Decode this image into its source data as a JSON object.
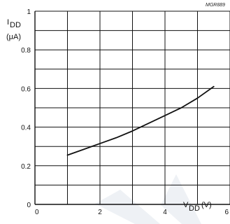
{
  "chart_data": {
    "type": "line",
    "figure_code": "MGR889",
    "xlim": [
      0,
      6
    ],
    "ylim": [
      0,
      1
    ],
    "x_tick_labels": [
      "0",
      "2",
      "4",
      "6"
    ],
    "y_tick_labels": [
      "0",
      "0.2",
      "0.4",
      "0.6",
      "0.8",
      "1"
    ],
    "y_label": {
      "main": "I",
      "sub": "DD",
      "unit": "(μA)"
    },
    "x_label": {
      "main": "V",
      "sub": "DD",
      "unit": "(V)"
    },
    "grid": true,
    "series": [
      {
        "x": [
          1.0,
          1.5,
          2.0,
          2.5,
          3.0,
          3.5,
          4.0,
          4.5,
          5.0,
          5.5
        ],
        "y": [
          0.255,
          0.285,
          0.315,
          0.345,
          0.38,
          0.42,
          0.46,
          0.5,
          0.55,
          0.61
        ]
      }
    ],
    "colors": {
      "axis": "#111111",
      "grid": "#111111",
      "series": "#111111",
      "watermark": "#eef1f5"
    }
  }
}
